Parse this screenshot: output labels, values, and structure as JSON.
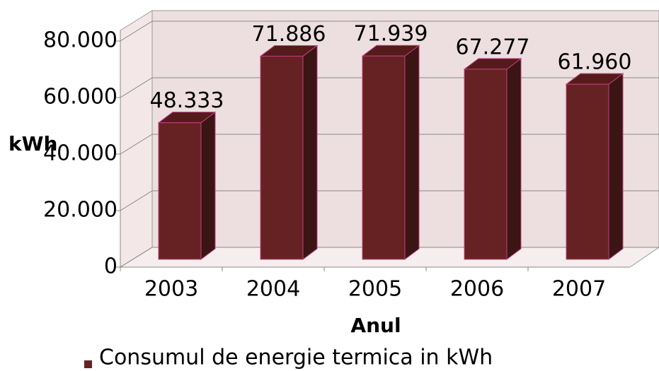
{
  "chart_data": {
    "type": "bar3d",
    "categories": [
      "2003",
      "2004",
      "2005",
      "2006",
      "2007"
    ],
    "series": [
      {
        "name": "Consumul de energie termica in kWh",
        "color": "#662222",
        "values": [
          48333,
          71886,
          71939,
          67277,
          61960
        ],
        "value_labels": [
          "48.333",
          "71.886",
          "71.939",
          "67.277",
          "61.960"
        ]
      }
    ],
    "ylabel": "kWh",
    "xlabel": "Anul",
    "ylim": [
      0,
      80000
    ],
    "yticks": [
      0,
      {
        "value": 20000,
        "label": "20.000"
      },
      {
        "value": 40000,
        "label": "40.000"
      },
      {
        "value": 60000,
        "label": "60.000"
      },
      {
        "value": 80000,
        "label": "80.000"
      }
    ],
    "grid": true,
    "legend": "bottom"
  }
}
